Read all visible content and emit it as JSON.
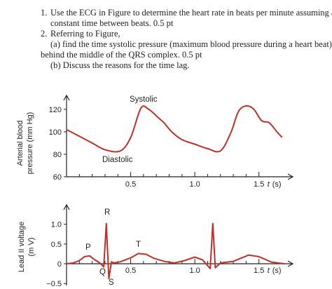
{
  "questions": [
    {
      "num": "1.",
      "text": "Use the ECG in Figure to determine the heart rate in beats per minute assuming a",
      "cont": "constant time between beats. 0.5 pt"
    },
    {
      "num": "2.",
      "text": "Referring to Figure,",
      "parts": [
        {
          "a": "(a) find the time systolic pressure (maximum blood pressure during a heart beat) lags",
          "a2": "behind the middle of the QRS complex. 0.5 pt"
        },
        {
          "b": "(b) Discuss the reasons for the time lag."
        }
      ]
    }
  ],
  "chart_data": [
    {
      "type": "line",
      "ylabel_line1": "Arterial blood",
      "ylabel_line2": "pressure (mm Hg)",
      "yticks": [
        "60",
        "80",
        "100",
        "120"
      ],
      "xticks": [
        "0.5",
        "1.0",
        "1.5"
      ],
      "xunit_var": "t",
      "xunit": "(s)",
      "ylim": [
        60,
        128
      ],
      "xlim": [
        0,
        1.72
      ],
      "annotations": {
        "systolic": "Systolic",
        "diastolic": "Diastolic"
      },
      "color": "#c0302a",
      "x": [
        0.0,
        0.1,
        0.2,
        0.3,
        0.42,
        0.5,
        0.58,
        0.64,
        0.72,
        0.76,
        0.82,
        0.9,
        1.0,
        1.1,
        1.2,
        1.28,
        1.34,
        1.4,
        1.46,
        1.52,
        1.58,
        1.64,
        1.68
      ],
      "y": [
        102,
        96,
        90,
        84,
        83,
        95,
        121,
        120,
        112,
        108,
        100,
        93,
        89,
        85,
        83,
        99,
        118,
        123,
        120,
        110,
        108,
        100,
        95
      ]
    },
    {
      "type": "line",
      "ylabel_line1": "Lead II voltage",
      "ylabel_line2": "(m V)",
      "yticks": [
        "-0.5",
        "0",
        "0.5",
        "1.0"
      ],
      "xticks": [
        "0.5",
        "1.0",
        "1.5"
      ],
      "xunit_var": "t",
      "xunit": "(s)",
      "ylim": [
        -0.55,
        1.35
      ],
      "xlim": [
        0,
        1.72
      ],
      "annotations": {
        "P": "P",
        "Q": "Q",
        "R": "R",
        "S": "S",
        "T": "T"
      },
      "color": "#c0302a",
      "x": [
        0.0,
        0.05,
        0.1,
        0.14,
        0.18,
        0.22,
        0.26,
        0.29,
        0.31,
        0.33,
        0.35,
        0.37,
        0.42,
        0.5,
        0.56,
        0.62,
        0.68,
        0.76,
        0.84,
        0.92,
        1.0,
        1.06,
        1.1,
        1.12,
        1.14,
        1.16,
        1.2,
        1.3,
        1.42,
        1.5,
        1.6,
        1.7
      ],
      "y": [
        0,
        0.02,
        0.08,
        0.18,
        0.2,
        0.1,
        0.02,
        -0.08,
        1.02,
        -0.38,
        0.05,
        0.02,
        0.05,
        0.15,
        0.26,
        0.24,
        0.14,
        0.06,
        0.02,
        0.08,
        0.17,
        0.1,
        -0.05,
        -0.12,
        1.02,
        -0.1,
        0.02,
        0.06,
        0.22,
        0.18,
        0.04,
        0.0
      ]
    }
  ]
}
